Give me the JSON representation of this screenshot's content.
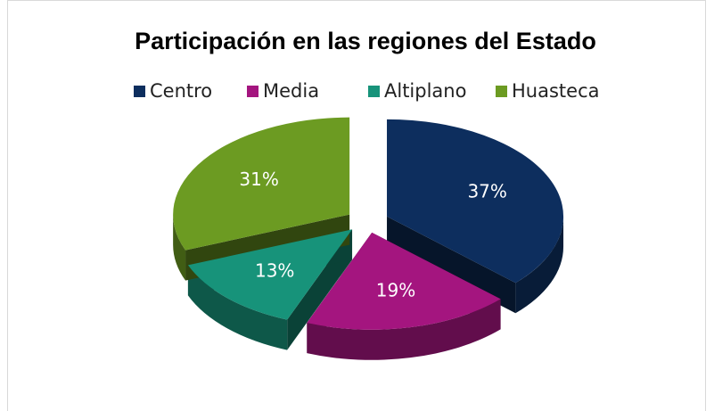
{
  "chart_data": {
    "type": "pie",
    "title": "Participación en las regiones del Estado",
    "categories": [
      "Centro",
      "Media",
      "Altiplano",
      "Huasteca"
    ],
    "values": [
      37,
      19,
      13,
      31
    ],
    "value_labels": [
      "37%",
      "19%",
      "13%",
      "31%"
    ],
    "colors": [
      "#0d2e5e",
      "#a4157f",
      "#17937a",
      "#6c9b22"
    ],
    "legend": "top"
  }
}
